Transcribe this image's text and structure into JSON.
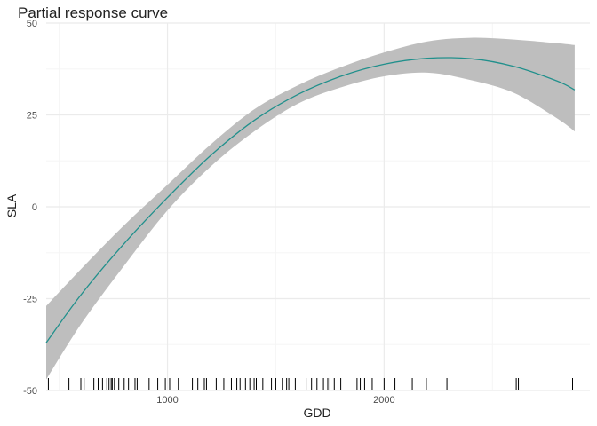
{
  "chart_data": {
    "type": "line",
    "title": "Partial response curve",
    "xlabel": "GDD",
    "ylabel": "SLA",
    "xlim": [
      440,
      2950
    ],
    "ylim": [
      -50,
      50
    ],
    "x_ticks": [
      1000,
      2000
    ],
    "y_ticks": [
      -50,
      -25,
      0,
      25,
      50
    ],
    "grid": true,
    "legend": "none",
    "colors": {
      "line": "#21908C",
      "band": "#BEBEBE",
      "rug": "#000000",
      "grid_major": "#EBEBEB",
      "grid_minor": "#F5F5F5"
    },
    "series": [
      {
        "x": [
          440,
          600,
          800,
          1000,
          1200,
          1400,
          1600,
          1800,
          2000,
          2200,
          2400,
          2600,
          2800,
          2880
        ],
        "y": [
          -37,
          -24,
          -10,
          2.5,
          14,
          23.5,
          30.5,
          35.5,
          38.8,
          40.4,
          40.3,
          38.2,
          34.2,
          31.8
        ],
        "lower": [
          -47,
          -32,
          -16,
          -1,
          11,
          20.5,
          28,
          32.5,
          35.5,
          36.5,
          34.5,
          31,
          24,
          20.5
        ],
        "upper": [
          -27,
          -17,
          -5,
          6,
          17,
          26.5,
          33,
          38,
          42,
          45,
          46,
          45.5,
          44.5,
          44
        ]
      }
    ],
    "rug_x": [
      450,
      545,
      600,
      615,
      660,
      680,
      700,
      720,
      730,
      740,
      745,
      755,
      775,
      800,
      820,
      850,
      860,
      915,
      955,
      990,
      1010,
      1050,
      1090,
      1115,
      1140,
      1170,
      1180,
      1225,
      1260,
      1295,
      1320,
      1335,
      1360,
      1380,
      1400,
      1410,
      1440,
      1480,
      1500,
      1530,
      1550,
      1560,
      1590,
      1640,
      1665,
      1690,
      1720,
      1740,
      1750,
      1770,
      1800,
      1875,
      1890,
      1910,
      1945,
      2000,
      2050,
      2130,
      2195,
      2290,
      2610,
      2620,
      2870
    ]
  }
}
